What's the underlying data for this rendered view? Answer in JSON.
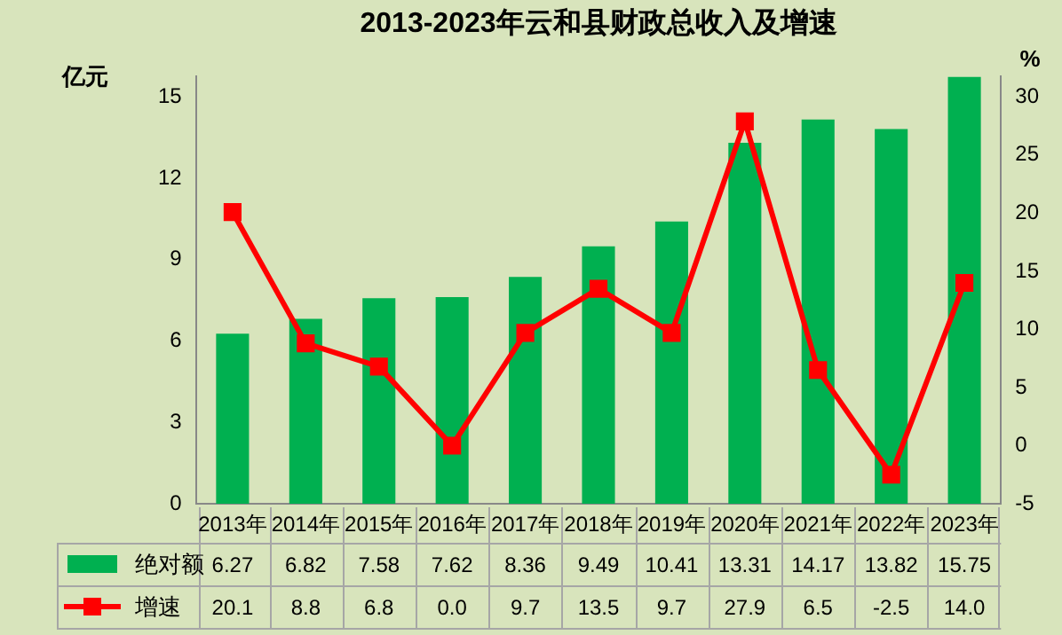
{
  "chart_data": {
    "type": "bar",
    "title": "2013-2023年云和县财政总收入及增速",
    "ylabel": "亿元",
    "y2label": "%",
    "categories": [
      "2013年",
      "2014年",
      "2015年",
      "2016年",
      "2017年",
      "2018年",
      "2019年",
      "2020年",
      "2021年",
      "2022年",
      "2023年"
    ],
    "series": [
      {
        "name": "绝对额",
        "color": "#00b050",
        "values": [
          6.27,
          6.82,
          7.58,
          7.62,
          8.36,
          9.49,
          10.41,
          13.31,
          14.17,
          13.82,
          15.75
        ],
        "value_labels": [
          "6.27",
          "6.82",
          "7.58",
          "7.62",
          "8.36",
          "9.49",
          "10.41",
          "13.31",
          "14.17",
          "13.82",
          "15.75"
        ]
      },
      {
        "name": "增速",
        "type": "line",
        "axis": "y2",
        "color": "#ff0000",
        "marker": "square",
        "line_style": "solid",
        "values": [
          20.1,
          8.8,
          6.8,
          0.0,
          9.7,
          13.5,
          9.7,
          27.9,
          6.5,
          -2.5,
          14.0
        ],
        "value_labels": [
          "20.1",
          "8.8",
          "6.8",
          "0.0",
          "9.7",
          "13.5",
          "9.7",
          "27.9",
          "6.5",
          "-2.5",
          "14.0"
        ]
      }
    ],
    "ylim": [
      0,
      15.75
    ],
    "yticks": [
      0,
      3,
      6,
      9,
      12,
      15
    ],
    "y2lim": [
      -5,
      31.75
    ],
    "y2ticks": [
      -5,
      0,
      5,
      10,
      15,
      20,
      25,
      30
    ],
    "grid": false,
    "legend": "bottom"
  }
}
